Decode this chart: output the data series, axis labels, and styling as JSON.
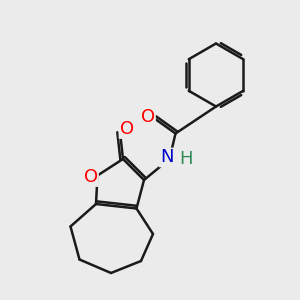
{
  "bg_color": "#ebebeb",
  "bond_color": "#1a1a1a",
  "bond_width": 1.8,
  "atom_colors": {
    "O": "#ff0000",
    "N": "#0000cd",
    "H": "#2e8b57",
    "C": "#1a1a1a"
  },
  "font_size": 13,
  "figsize": [
    3.0,
    3.0
  ],
  "dpi": 100,
  "xlim": [
    0,
    10
  ],
  "ylim": [
    0,
    10
  ]
}
